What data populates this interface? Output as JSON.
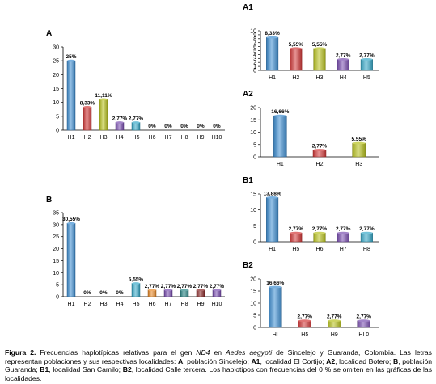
{
  "caption": {
    "lead": "Figura 2.",
    "text_1": " Frecuencias haplotípicas relativas para el gen ",
    "gene": "ND4",
    "text_2": " en ",
    "species": "Aedes aegypti",
    "text_3": " de Sincelejo y Guaranda, Colombia. Las letras representan poblaciones y sus respectivas localidades: ",
    "k_A": "A",
    "t_A": ", población Sincelejo; ",
    "k_A1": "A1",
    "t_A1": ", localidad El Cortijo; ",
    "k_A2": "A2",
    "t_A2": ", localidad Botero; ",
    "k_B": "B",
    "t_B": ", población Guaranda; ",
    "k_B1": "B1",
    "t_B1": ", localidad San Camilo; ",
    "k_B2": "B2",
    "t_B2": ", localidad Calle tercera. Los haplotipos con frecuencias del 0 % se omiten en las gráficas de las localidades."
  },
  "chart_data": [
    {
      "id": "A",
      "panel_label": "A",
      "type": "bar",
      "categories": [
        "H1",
        "H2",
        "H3",
        "H4",
        "H5",
        "H6",
        "H7",
        "H8",
        "H9",
        "H10"
      ],
      "values": [
        25,
        8.33,
        11.11,
        2.77,
        2.77,
        0,
        0,
        0,
        0,
        0
      ],
      "data_labels": [
        "25%",
        "8,33%",
        "11,11%",
        "2,77%",
        "2,77%",
        "0%",
        "0%",
        "0%",
        "0%",
        "0%"
      ],
      "colors": [
        "#3f8fd2",
        "#d23a3a",
        "#b8c21f",
        "#7a4fb0",
        "#38a9c9",
        "#3f8fd2",
        "#3f8fd2",
        "#3f8fd2",
        "#3f8fd2",
        "#3f8fd2"
      ],
      "ylim": [
        0,
        30
      ],
      "yticks": [
        0,
        5,
        10,
        15,
        20,
        25,
        30
      ]
    },
    {
      "id": "A1",
      "panel_label": "A1",
      "type": "bar",
      "categories": [
        "H1",
        "H2",
        "H3",
        "H4",
        "H5"
      ],
      "values": [
        8.33,
        5.55,
        5.55,
        2.77,
        2.77
      ],
      "data_labels": [
        "8,33%",
        "5,55%",
        "5,55%",
        "2,77%",
        "2,77%"
      ],
      "colors": [
        "#3f8fd2",
        "#d23a3a",
        "#b8c21f",
        "#7a4fb0",
        "#38a9c9"
      ],
      "ylim": [
        0,
        10
      ],
      "yticks": [
        0,
        1,
        2,
        3,
        4,
        5,
        6,
        7,
        8,
        9,
        10
      ]
    },
    {
      "id": "A2",
      "panel_label": "A2",
      "type": "bar",
      "categories": [
        "H1",
        "H2",
        "H3"
      ],
      "values": [
        16.66,
        2.77,
        5.55
      ],
      "data_labels": [
        "16,66%",
        "2,77%",
        "5,55%"
      ],
      "colors": [
        "#3f8fd2",
        "#d23a3a",
        "#b8c21f"
      ],
      "ylim": [
        0,
        20
      ],
      "yticks": [
        0,
        5,
        10,
        15,
        20
      ]
    },
    {
      "id": "B",
      "panel_label": "B",
      "type": "bar",
      "categories": [
        "H1",
        "H2",
        "H3",
        "H4",
        "H5",
        "H6",
        "H7",
        "H8",
        "H9",
        "H10"
      ],
      "values": [
        30.55,
        0,
        0,
        0,
        5.55,
        2.77,
        2.77,
        2.77,
        2.77,
        2.77
      ],
      "data_labels": [
        "30,55%",
        "0%",
        "0%",
        "0%",
        "5,55%",
        "2,77%",
        "2,77%",
        "2,77%",
        "2,77%",
        "2,77%"
      ],
      "colors": [
        "#3f8fd2",
        "#3f8fd2",
        "#3f8fd2",
        "#3f8fd2",
        "#38a9c9",
        "#e88a2a",
        "#7a4fb0",
        "#2f8a8a",
        "#8a2a2a",
        "#7a4fb0"
      ],
      "ylim": [
        0,
        35
      ],
      "yticks": [
        0,
        5,
        10,
        15,
        20,
        25,
        30,
        35
      ]
    },
    {
      "id": "B1",
      "panel_label": "B1",
      "type": "bar",
      "categories": [
        "H1",
        "H5",
        "H6",
        "H7",
        "H8"
      ],
      "values": [
        13.88,
        2.77,
        2.77,
        2.77,
        2.77
      ],
      "data_labels": [
        "13,88%",
        "2,77%",
        "2,77%",
        "2,77%",
        "2,77%"
      ],
      "colors": [
        "#3f8fd2",
        "#d23a3a",
        "#b8c21f",
        "#7a4fb0",
        "#38a9c9"
      ],
      "ylim": [
        0,
        15
      ],
      "yticks": [
        0,
        5,
        10,
        15
      ]
    },
    {
      "id": "B2",
      "panel_label": "B2",
      "type": "bar",
      "categories": [
        "HI",
        "H5",
        "H9",
        "HI 0"
      ],
      "values": [
        16.66,
        2.77,
        2.77,
        2.77
      ],
      "data_labels": [
        "16,66%",
        "2,77%",
        "2,77%",
        "2,77%"
      ],
      "colors": [
        "#3f8fd2",
        "#d23a3a",
        "#b8c21f",
        "#7a4fb0"
      ],
      "ylim": [
        0,
        20
      ],
      "yticks": [
        0,
        5,
        10,
        15,
        20
      ]
    }
  ]
}
